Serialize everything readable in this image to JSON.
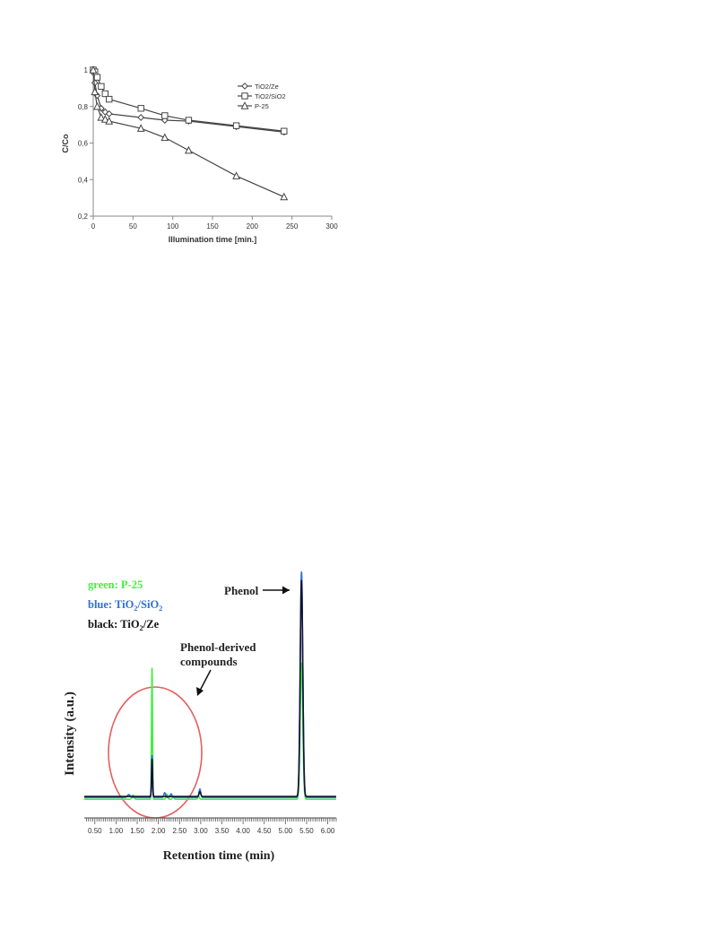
{
  "chart_data": [
    {
      "type": "line",
      "title": "",
      "xlabel": "Illumination time [min.]",
      "ylabel": "C/Co",
      "xlim": [
        0,
        300
      ],
      "ylim": [
        0.2,
        1
      ],
      "x_ticks": [
        0,
        50,
        100,
        150,
        200,
        250,
        300
      ],
      "y_ticks": [
        0.2,
        0.4,
        0.6,
        0.8,
        1
      ],
      "y_tick_labels": [
        "0,2",
        "0,4",
        "0,6",
        "0,8",
        "1"
      ],
      "grid": false,
      "legend_position": "top-right",
      "series": [
        {
          "name": "TiO2/Ze",
          "marker": "diamond",
          "x": [
            0,
            2,
            5,
            10,
            15,
            20,
            60,
            90,
            120,
            180,
            240
          ],
          "y": [
            1.0,
            0.93,
            0.86,
            0.79,
            0.77,
            0.76,
            0.74,
            0.725,
            0.72,
            0.69,
            0.66
          ]
        },
        {
          "name": "TiO2/SiO2",
          "marker": "square",
          "x": [
            0,
            2,
            5,
            10,
            15,
            20,
            60,
            90,
            120,
            180,
            240
          ],
          "y": [
            1.0,
            0.99,
            0.96,
            0.91,
            0.87,
            0.84,
            0.79,
            0.75,
            0.725,
            0.695,
            0.665
          ]
        },
        {
          "name": "P-25",
          "marker": "triangle",
          "x": [
            0,
            2,
            5,
            10,
            15,
            20,
            60,
            90,
            120,
            180,
            240
          ],
          "y": [
            1.0,
            0.88,
            0.8,
            0.74,
            0.73,
            0.72,
            0.68,
            0.63,
            0.56,
            0.42,
            0.305
          ]
        }
      ]
    },
    {
      "type": "line",
      "title": "",
      "xlabel": "Retention time (min)",
      "ylabel": "Intensity (a.u.)",
      "xlim": [
        0.25,
        6.2
      ],
      "x_ticks": [
        0.5,
        1.0,
        1.5,
        2.0,
        2.5,
        3.0,
        3.5,
        4.0,
        4.5,
        5.0,
        5.5,
        6.0
      ],
      "x_tick_labels": [
        "0.50",
        "1.00",
        "1.50",
        "2.00",
        "2.50",
        "3.00",
        "3.50",
        "4.00",
        "4.50",
        "5.00",
        "5.50",
        "6.00"
      ],
      "ylim": [
        0,
        1
      ],
      "legend_position": "top-left",
      "legend": [
        {
          "prefix": "green: ",
          "main": "P-25",
          "sub": "",
          "tail": "",
          "color": "#44ee44"
        },
        {
          "prefix": "blue: ",
          "main": "TiO",
          "sub": "2",
          "tail": "/SiO",
          "sub2": "2",
          "color": "#2f6fd6"
        },
        {
          "prefix": "black: ",
          "main": "TiO",
          "sub": "2",
          "tail": "/Ze",
          "sub2": "",
          "color": "#111111"
        }
      ],
      "annotations": {
        "phenol": "Phenol",
        "derived_line1": "Phenol-derived",
        "derived_line2": "compounds"
      },
      "baseline": 0.03,
      "series": [
        {
          "name": "P-25",
          "color": "#44ee44",
          "peaks": [
            {
              "x": 1.4,
              "h": 0.018,
              "w": 0.025
            },
            {
              "x": 1.85,
              "h": 0.56,
              "w": 0.012
            },
            {
              "x": 2.2,
              "h": 0.022,
              "w": 0.02
            },
            {
              "x": 2.35,
              "h": 0.012,
              "w": 0.02
            },
            {
              "x": 2.95,
              "h": 0.012,
              "w": 0.02
            },
            {
              "x": 5.38,
              "h": 0.58,
              "w": 0.03
            }
          ]
        },
        {
          "name": "TiO2/SiO2",
          "color": "#2f6fd6",
          "peaks": [
            {
              "x": 1.3,
              "h": 0.012,
              "w": 0.03
            },
            {
              "x": 1.85,
              "h": 0.18,
              "w": 0.012
            },
            {
              "x": 2.15,
              "h": 0.02,
              "w": 0.02
            },
            {
              "x": 2.3,
              "h": 0.015,
              "w": 0.02
            },
            {
              "x": 2.98,
              "h": 0.035,
              "w": 0.02
            },
            {
              "x": 5.38,
              "h": 0.96,
              "w": 0.03
            }
          ]
        },
        {
          "name": "TiO2/Ze",
          "color": "#111133",
          "peaks": [
            {
              "x": 1.85,
              "h": 0.16,
              "w": 0.012
            },
            {
              "x": 2.98,
              "h": 0.02,
              "w": 0.02
            },
            {
              "x": 5.38,
              "h": 0.92,
              "w": 0.03
            }
          ]
        }
      ]
    }
  ]
}
